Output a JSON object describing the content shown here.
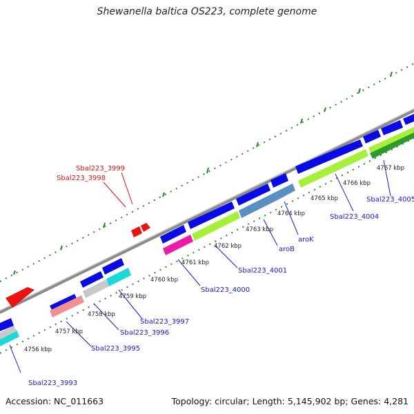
{
  "header": {
    "title": "Shewanella baltica OS223, complete genome"
  },
  "footer": {
    "accession": "Accession: NC_011663",
    "summary": "Topology: circular; Length: 5,145,902 bp; Genes: 4,281"
  },
  "colors": {
    "backbone": "#8a8a8a",
    "forward_gene": "#0a0ae6",
    "rna_gene": "#ee1111",
    "gc_ticks": "#1f8a1f",
    "label_blue": "#1a1acc",
    "label_red": "#dd1111",
    "cds_light_green": "#a6f03c",
    "cds_dark_green": "#2e9a2e",
    "cds_steel_blue": "#5a8fc2",
    "cds_pink": "#ee1aa8",
    "cds_salmon": "#f09090",
    "cds_cyan": "#1cd8d8",
    "cds_silver": "#c8c8c8"
  },
  "ticks": [
    {
      "label": "4756 kbp"
    },
    {
      "label": "4757 kbp"
    },
    {
      "label": "4758 kbp"
    },
    {
      "label": "4759 kbp"
    },
    {
      "label": "4760 kbp"
    },
    {
      "label": "4761 kbp"
    },
    {
      "label": "4762 kbp"
    },
    {
      "label": "4763 kbp"
    },
    {
      "label": "4764 kbp"
    },
    {
      "label": "4765 kbp"
    },
    {
      "label": "4766 kbp"
    },
    {
      "label": "4767 kbp"
    }
  ],
  "gene_labels": [
    {
      "label": "Sbal223_3993"
    },
    {
      "label": "Sbal223_3995"
    },
    {
      "label": "Sbal223_3996"
    },
    {
      "label": "Sbal223_3997"
    },
    {
      "label": "Sbal223_4000"
    },
    {
      "label": "Sbal223_4001"
    },
    {
      "label": "aroB"
    },
    {
      "label": "aroK"
    },
    {
      "label": "Sbal223_4004"
    },
    {
      "label": "Sbal223_4005"
    },
    {
      "label": "Sbal223_3999"
    },
    {
      "label": "Sbal223_3998"
    }
  ]
}
